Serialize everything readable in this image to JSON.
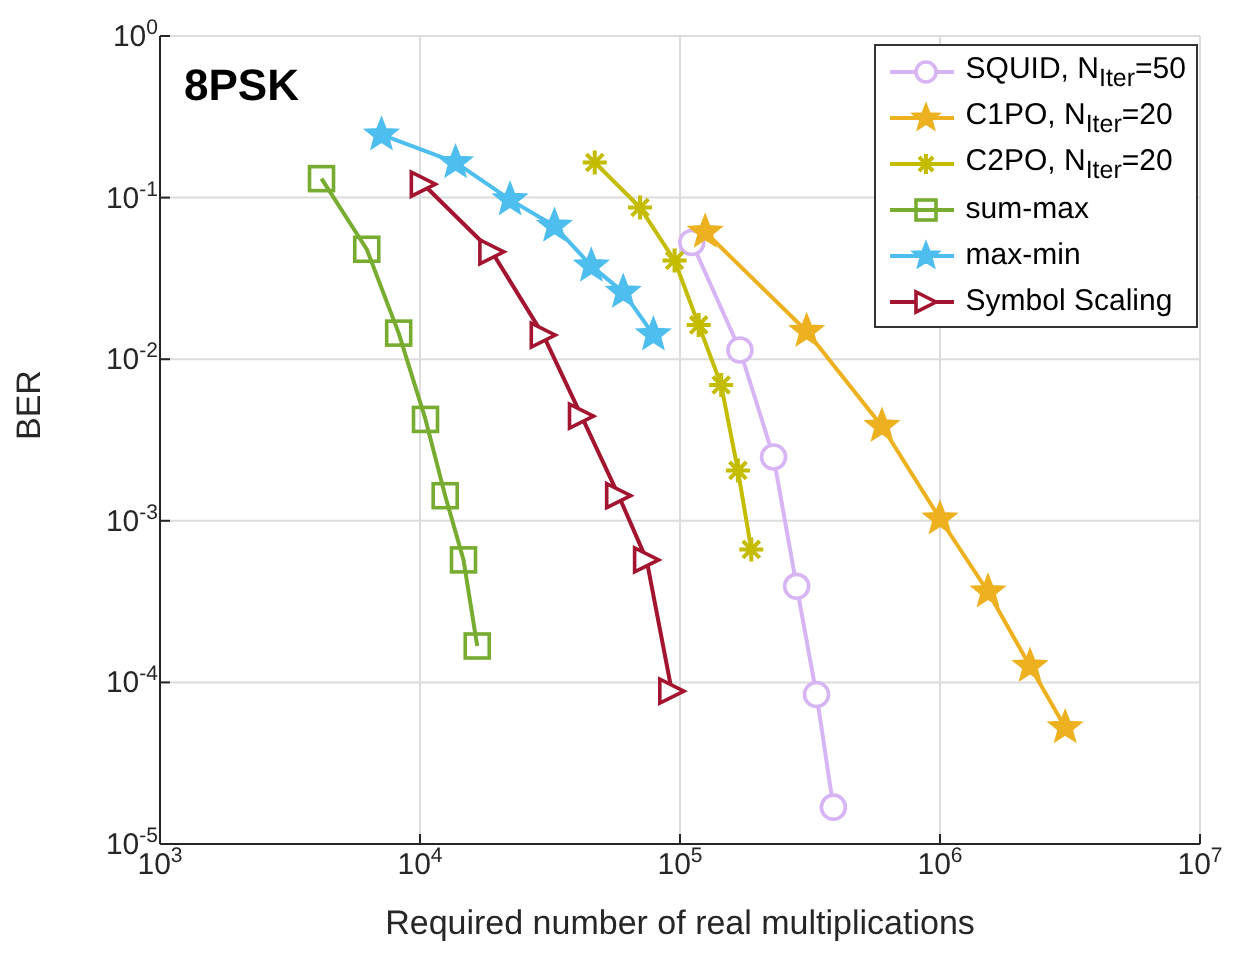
{
  "chart_data": {
    "type": "line",
    "title": "8PSK",
    "xlabel": "Required number of real multiplications",
    "ylabel": "BER",
    "log": "xy",
    "grid": true,
    "legend": "top right",
    "xlim": [
      1000,
      10000000
    ],
    "ylim": [
      1e-05,
      1
    ],
    "xticks": [
      {
        "value": 1000,
        "label": "10$^{3}$"
      },
      {
        "value": 10000,
        "label": "10$^{4}$"
      },
      {
        "value": 100000,
        "label": "10$^{5}$"
      },
      {
        "value": 1000000,
        "label": "10$^{6}$"
      },
      {
        "value": 10000000,
        "label": "10$^{7}$"
      }
    ],
    "yticks": [
      {
        "value": 1e-05,
        "label": "10$^{-5}$"
      },
      {
        "value": 0.0001,
        "label": "10$^{-4}$"
      },
      {
        "value": 0.001,
        "label": "10$^{-3}$"
      },
      {
        "value": 0.01,
        "label": "10$^{-2}$"
      },
      {
        "value": 0.1,
        "label": "10$^{-1}$"
      },
      {
        "value": 1,
        "label": "10$^{0}$"
      }
    ],
    "series": [
      {
        "name": "SQUID, N$_{Iter}$=50",
        "color": "#d7b4f3",
        "marker": "circle",
        "x": [
          111000,
          170000,
          229000,
          281000,
          335000,
          389000
        ],
        "values": [
          0.0527,
          0.0114,
          0.00248,
          0.000393,
          8.41e-05,
          1.69e-05
        ]
      },
      {
        "name": "C1PO, N$_{Iter}$=20",
        "color": "#edb120",
        "marker": "star",
        "x": [
          125000,
          307000,
          598000,
          1000000,
          1530000,
          2220000,
          3030000
        ],
        "values": [
          0.0613,
          0.0149,
          0.00385,
          0.00103,
          0.000364,
          0.000126,
          5.26e-05
        ]
      },
      {
        "name": "C2PO, N$_{Iter}$=20",
        "color": "#c4bc00",
        "marker": "cross",
        "x": [
          47000,
          70200,
          95300,
          118000,
          144000,
          167000,
          188000
        ],
        "values": [
          0.165,
          0.0868,
          0.0408,
          0.0163,
          0.00692,
          0.00205,
          0.000665
        ]
      },
      {
        "name": "sum-max",
        "color": "#77ac30",
        "marker": "square",
        "x": [
          4180,
          6240,
          8280,
          10500,
          12500,
          14700,
          16600
        ],
        "values": [
          0.131,
          0.0479,
          0.0145,
          0.00424,
          0.00143,
          0.000573,
          0.000168
        ]
      },
      {
        "name": "max-min",
        "color": "#4dbeee",
        "marker": "star",
        "x": [
          7110,
          13700,
          22200,
          32900,
          45600,
          60500,
          79000
        ],
        "values": [
          0.245,
          0.165,
          0.0972,
          0.0667,
          0.0378,
          0.026,
          0.0142
        ]
      },
      {
        "name": "Symbol Scaling",
        "color": "#a2142f",
        "marker": "triangle",
        "x": [
          10300,
          18900,
          29800,
          41800,
          58100,
          74400,
          93000
        ],
        "values": [
          0.121,
          0.0462,
          0.0141,
          0.00444,
          0.00143,
          0.000573,
          8.83e-05
        ]
      }
    ]
  }
}
